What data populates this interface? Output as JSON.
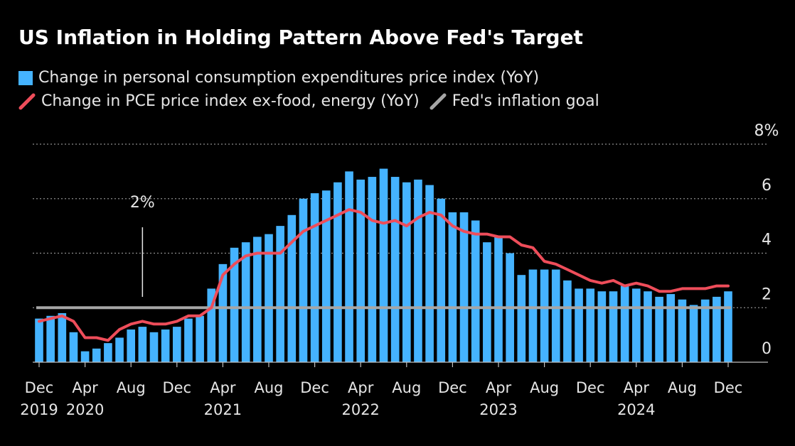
{
  "title": "US Inflation in Holding Pattern Above Fed's Target",
  "colors": {
    "bar": "#45b3ff",
    "core_line": "#ee4d5a",
    "goal_line": "#a6a6a6",
    "grid": "#8c8c8c",
    "text": "#e6e6e6"
  },
  "chart_data": {
    "type": "bar",
    "title": "US Inflation in Holding Pattern Above Fed's Target",
    "xlabel": "",
    "ylabel": "",
    "ylim": [
      0,
      8
    ],
    "yticks": [
      {
        "value": 0,
        "label": "0"
      },
      {
        "value": 2,
        "label": "2"
      },
      {
        "value": 4,
        "label": "4"
      },
      {
        "value": 6,
        "label": "6"
      },
      {
        "value": 8,
        "label": "8%"
      }
    ],
    "grid": "horizontal dotted",
    "legend_placement": "top-left",
    "x": [
      "2019-12",
      "2020-01",
      "2020-02",
      "2020-03",
      "2020-04",
      "2020-05",
      "2020-06",
      "2020-07",
      "2020-08",
      "2020-09",
      "2020-10",
      "2020-11",
      "2020-12",
      "2021-01",
      "2021-02",
      "2021-03",
      "2021-04",
      "2021-05",
      "2021-06",
      "2021-07",
      "2021-08",
      "2021-09",
      "2021-10",
      "2021-11",
      "2021-12",
      "2022-01",
      "2022-02",
      "2022-03",
      "2022-04",
      "2022-05",
      "2022-06",
      "2022-07",
      "2022-08",
      "2022-09",
      "2022-10",
      "2022-11",
      "2022-12",
      "2023-01",
      "2023-02",
      "2023-03",
      "2023-04",
      "2023-05",
      "2023-06",
      "2023-07",
      "2023-08",
      "2023-09",
      "2023-10",
      "2023-11",
      "2023-12",
      "2024-01",
      "2024-02",
      "2024-03",
      "2024-04",
      "2024-05",
      "2024-06",
      "2024-07",
      "2024-08",
      "2024-09",
      "2024-10",
      "2024-11",
      "2024-12"
    ],
    "xtick_labels": [
      {
        "x": "2019-12",
        "month": "Dec",
        "year": "2019"
      },
      {
        "x": "2020-04",
        "month": "Apr",
        "year": "2020"
      },
      {
        "x": "2020-08",
        "month": "Aug",
        "year": ""
      },
      {
        "x": "2020-12",
        "month": "Dec",
        "year": ""
      },
      {
        "x": "2021-04",
        "month": "Apr",
        "year": "2021"
      },
      {
        "x": "2021-08",
        "month": "Aug",
        "year": ""
      },
      {
        "x": "2021-12",
        "month": "Dec",
        "year": ""
      },
      {
        "x": "2022-04",
        "month": "Apr",
        "year": "2022"
      },
      {
        "x": "2022-08",
        "month": "Aug",
        "year": ""
      },
      {
        "x": "2022-12",
        "month": "Dec",
        "year": ""
      },
      {
        "x": "2023-04",
        "month": "Apr",
        "year": "2023"
      },
      {
        "x": "2023-08",
        "month": "Aug",
        "year": ""
      },
      {
        "x": "2023-12",
        "month": "Dec",
        "year": ""
      },
      {
        "x": "2024-04",
        "month": "Apr",
        "year": "2024"
      },
      {
        "x": "2024-08",
        "month": "Aug",
        "year": ""
      },
      {
        "x": "2024-12",
        "month": "Dec",
        "year": ""
      }
    ],
    "series": [
      {
        "name": "Change in personal consumption expenditures price index (YoY)",
        "type": "bar",
        "values": [
          1.6,
          1.7,
          1.8,
          1.1,
          0.4,
          0.5,
          0.7,
          0.9,
          1.2,
          1.3,
          1.1,
          1.2,
          1.3,
          1.6,
          1.7,
          2.7,
          3.6,
          4.2,
          4.4,
          4.6,
          4.7,
          5.0,
          5.4,
          6.0,
          6.2,
          6.3,
          6.6,
          7.0,
          6.7,
          6.8,
          7.1,
          6.8,
          6.6,
          6.7,
          6.5,
          6.0,
          5.5,
          5.5,
          5.2,
          4.4,
          4.6,
          4.0,
          3.2,
          3.4,
          3.4,
          3.4,
          3.0,
          2.7,
          2.7,
          2.6,
          2.6,
          2.8,
          2.7,
          2.6,
          2.4,
          2.5,
          2.3,
          2.1,
          2.3,
          2.4,
          2.6
        ]
      },
      {
        "name": "Change in PCE price index ex-food, energy (YoY)",
        "type": "line",
        "values": [
          1.5,
          1.6,
          1.7,
          1.5,
          0.9,
          0.9,
          0.8,
          1.2,
          1.4,
          1.5,
          1.4,
          1.4,
          1.5,
          1.7,
          1.7,
          2.0,
          3.2,
          3.6,
          3.9,
          4.0,
          4.0,
          4.0,
          4.4,
          4.8,
          5.0,
          5.2,
          5.4,
          5.6,
          5.5,
          5.2,
          5.1,
          5.2,
          5.0,
          5.3,
          5.5,
          5.4,
          5.0,
          4.8,
          4.7,
          4.7,
          4.6,
          4.6,
          4.3,
          4.2,
          3.7,
          3.6,
          3.4,
          3.2,
          3.0,
          2.9,
          3.0,
          2.8,
          2.9,
          2.8,
          2.6,
          2.6,
          2.7,
          2.7,
          2.7,
          2.8,
          2.8
        ]
      },
      {
        "name": "Fed's inflation goal",
        "type": "line",
        "value": 2
      }
    ],
    "annotations": [
      {
        "text": "2%",
        "x": "2020-09"
      }
    ]
  }
}
